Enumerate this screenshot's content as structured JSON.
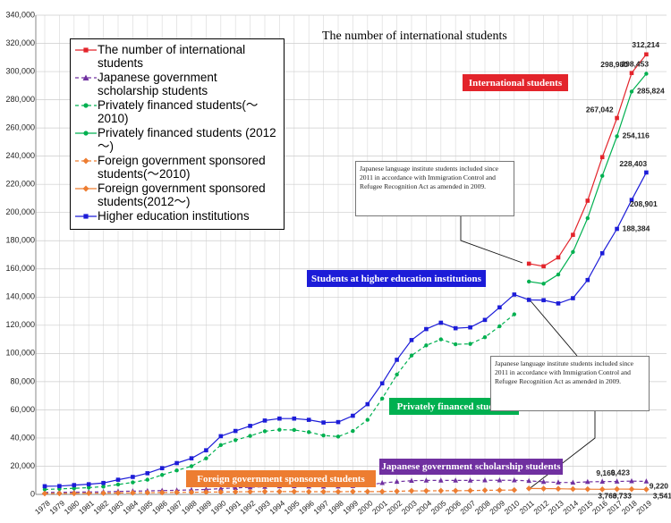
{
  "chart_data": {
    "type": "line",
    "title": "The number of international students",
    "categories": [
      "1978",
      "1979",
      "1980",
      "1981",
      "1982",
      "1983",
      "1984",
      "1985",
      "1986",
      "1987",
      "1988",
      "1989",
      "1990",
      "1991",
      "1992",
      "1993",
      "1994",
      "1995",
      "1996",
      "1997",
      "1998",
      "1999",
      "2000",
      "2001",
      "2002",
      "2003",
      "2004",
      "2005",
      "2006",
      "2007",
      "2008",
      "2009",
      "2010",
      "2011",
      "2012",
      "2013",
      "2014",
      "2015",
      "2016",
      "2017",
      "2018",
      "2019"
    ],
    "ylim": [
      0,
      340000
    ],
    "yticks": [
      0,
      {
        "value": 20000,
        "label": "20,000"
      },
      {
        "value": 40000,
        "label": "40,000"
      },
      {
        "value": 60000,
        "label": "60,000"
      },
      {
        "value": 80000,
        "label": "80,000"
      },
      {
        "value": 100000,
        "label": "100,000"
      },
      {
        "value": 120000,
        "label": "120,000"
      },
      {
        "value": 140000,
        "label": "140,000"
      },
      {
        "value": 160000,
        "label": "160,000"
      },
      {
        "value": 180000,
        "label": "180,000"
      },
      {
        "value": 200000,
        "label": "200,000"
      },
      {
        "value": 220000,
        "label": "220,000"
      },
      {
        "value": 240000,
        "label": "240,000"
      },
      {
        "value": 260000,
        "label": "260,000"
      },
      {
        "value": 280000,
        "label": "280,000"
      },
      {
        "value": 300000,
        "label": "300,000"
      },
      {
        "value": 320000,
        "label": "320,000"
      },
      {
        "value": 340000,
        "label": "340,000"
      }
    ],
    "grid": true,
    "legend": "upper left",
    "series": [
      {
        "name": "The number of international students",
        "color": "#e3242b",
        "marker": "square",
        "dashed": false,
        "values": [
          null,
          null,
          null,
          null,
          null,
          null,
          null,
          null,
          null,
          null,
          null,
          null,
          null,
          null,
          null,
          null,
          null,
          null,
          null,
          null,
          null,
          null,
          null,
          null,
          null,
          null,
          null,
          null,
          null,
          null,
          null,
          null,
          null,
          163697,
          161848,
          168145,
          184155,
          208379,
          239287,
          267042,
          298980,
          312214
        ],
        "value_labels": [
          null,
          null,
          null,
          null,
          null,
          null,
          null,
          null,
          null,
          null,
          null,
          null,
          null,
          null,
          null,
          null,
          null,
          null,
          null,
          null,
          null,
          null,
          null,
          null,
          null,
          null,
          null,
          null,
          null,
          null,
          null,
          null,
          null,
          null,
          null,
          null,
          null,
          null,
          null,
          "267,042",
          "298,980",
          "312,214"
        ]
      },
      {
        "name": "Japanese government scholarship students",
        "color": "#7030a0",
        "marker": "triangle",
        "dashed": true,
        "values": [
          1400,
          1500,
          1600,
          1700,
          1800,
          2100,
          2300,
          2500,
          2700,
          2900,
          3200,
          3500,
          4100,
          4600,
          5000,
          5400,
          5800,
          5800,
          5700,
          5600,
          5700,
          6000,
          6600,
          8100,
          9000,
          9700,
          9900,
          9900,
          9900,
          9900,
          10000,
          10000,
          10000,
          9600,
          8900,
          8500,
          8400,
          8900,
          9100,
          9166,
          9423,
          9220
        ],
        "value_labels": [
          null,
          null,
          null,
          null,
          null,
          null,
          null,
          null,
          null,
          null,
          null,
          null,
          null,
          null,
          null,
          null,
          null,
          null,
          null,
          null,
          null,
          null,
          null,
          null,
          null,
          null,
          null,
          null,
          null,
          null,
          null,
          null,
          null,
          null,
          null,
          null,
          null,
          null,
          null,
          "9,166",
          "9,423",
          "9,220"
        ]
      },
      {
        "name": "Privately financed students(～2010)",
        "color": "#00b050",
        "marker": "circle",
        "dashed": true,
        "values": [
          3500,
          3900,
          4300,
          4800,
          5500,
          7000,
          8500,
          10400,
          13800,
          17000,
          20000,
          25600,
          35000,
          38500,
          41500,
          44800,
          45900,
          45700,
          44200,
          41800,
          41000,
          45000,
          52900,
          68000,
          85000,
          98500,
          105700,
          110000,
          106500,
          106800,
          111500,
          119300,
          127800,
          null,
          null,
          null,
          null,
          null,
          null,
          null,
          null,
          null
        ]
      },
      {
        "name": "Privately financed students (2012～)",
        "color": "#00b050",
        "marker": "circle",
        "dashed": false,
        "values": [
          null,
          null,
          null,
          null,
          null,
          null,
          null,
          null,
          null,
          null,
          null,
          null,
          null,
          null,
          null,
          null,
          null,
          null,
          null,
          null,
          null,
          null,
          null,
          null,
          null,
          null,
          null,
          null,
          null,
          null,
          null,
          null,
          null,
          151000,
          149500,
          156000,
          172000,
          196000,
          226000,
          254116,
          285824,
          298453
        ],
        "value_labels": [
          null,
          null,
          null,
          null,
          null,
          null,
          null,
          null,
          null,
          null,
          null,
          null,
          null,
          null,
          null,
          null,
          null,
          null,
          null,
          null,
          null,
          null,
          null,
          null,
          null,
          null,
          null,
          null,
          null,
          null,
          null,
          null,
          null,
          null,
          null,
          null,
          null,
          null,
          null,
          "254,116",
          "285,824",
          "298,453"
        ]
      },
      {
        "name": "Foreign government sponsored students(～2010)",
        "color": "#ed7d31",
        "marker": "diamond",
        "dashed": true,
        "values": [
          600,
          700,
          700,
          800,
          900,
          1000,
          1100,
          1200,
          1300,
          1400,
          1500,
          1600,
          1700,
          1800,
          1900,
          2000,
          2000,
          2000,
          1900,
          1900,
          1900,
          2000,
          2000,
          2000,
          2200,
          2500,
          2500,
          2600,
          2600,
          2700,
          2900,
          3000,
          3100,
          null,
          null,
          null,
          null,
          null,
          null,
          null,
          null,
          null
        ]
      },
      {
        "name": "Foreign government sponsored students(2012～)",
        "color": "#ed7d31",
        "marker": "diamond",
        "dashed": false,
        "values": [
          null,
          null,
          null,
          null,
          null,
          null,
          null,
          null,
          null,
          null,
          null,
          null,
          null,
          null,
          null,
          null,
          null,
          null,
          null,
          null,
          null,
          null,
          null,
          null,
          null,
          null,
          null,
          null,
          null,
          null,
          null,
          null,
          null,
          4200,
          4100,
          4000,
          3800,
          3700,
          3600,
          3760,
          3733,
          3541
        ],
        "value_labels": [
          null,
          null,
          null,
          null,
          null,
          null,
          null,
          null,
          null,
          null,
          null,
          null,
          null,
          null,
          null,
          null,
          null,
          null,
          null,
          null,
          null,
          null,
          null,
          null,
          null,
          null,
          null,
          null,
          null,
          null,
          null,
          null,
          null,
          null,
          null,
          null,
          null,
          null,
          null,
          "3,760",
          "3,733",
          "3,541"
        ]
      },
      {
        "name": "Higher education institutions",
        "color": "#1c1cd8",
        "marker": "square",
        "dashed": false,
        "values": [
          5800,
          5900,
          6600,
          7200,
          8100,
          10400,
          12400,
          15000,
          18600,
          22200,
          25600,
          31300,
          41300,
          45000,
          48600,
          52400,
          53800,
          53800,
          52900,
          51000,
          51300,
          55800,
          64000,
          78800,
          95500,
          109500,
          117300,
          121800,
          117900,
          118500,
          123800,
          132700,
          141800,
          138000,
          137800,
          135500,
          139200,
          152100,
          171100,
          188384,
          208901,
          228403
        ],
        "value_labels": [
          null,
          null,
          null,
          null,
          null,
          null,
          null,
          null,
          null,
          null,
          null,
          null,
          null,
          null,
          null,
          null,
          null,
          null,
          null,
          null,
          null,
          null,
          null,
          null,
          null,
          null,
          null,
          null,
          null,
          null,
          null,
          null,
          null,
          null,
          null,
          null,
          null,
          null,
          null,
          "188,384",
          "208,901",
          "228,403"
        ]
      }
    ],
    "annotations": [
      {
        "text": "International students",
        "color": "#e3242b"
      },
      {
        "text": "Students at higher education institutions",
        "color": "#1c1cd8"
      },
      {
        "text": "Privately financed students",
        "color": "#00b050"
      },
      {
        "text": "Foreign government sponsored students",
        "color": "#ed7d31"
      },
      {
        "text": "Japanese government scholarship students",
        "color": "#7030a0"
      },
      {
        "text": "Japanese language institute students included since 2011 in accordance with Immigration Control and Refugee Recognition Act as amended in 2009."
      },
      {
        "text": "Japanese language institute students included since 2011 in accordance with Immigration Control and Refugee Recognition Act as amended in 2009."
      }
    ]
  }
}
